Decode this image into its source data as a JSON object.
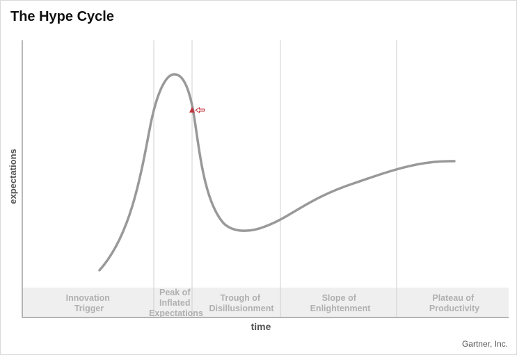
{
  "title": "The Hype Cycle",
  "credit": "Gartner, Inc.",
  "axes": {
    "y_label": "expectations",
    "x_label": "time"
  },
  "phases": [
    {
      "lines": [
        "Innovation",
        "Trigger"
      ]
    },
    {
      "lines": [
        "Peak of",
        "Inflated",
        "Expectations"
      ]
    },
    {
      "lines": [
        "Trough of",
        "Disillusionment"
      ]
    },
    {
      "lines": [
        "Slope of",
        "Enlightenment"
      ]
    },
    {
      "lines": [
        "Plateau of",
        "Productivity"
      ]
    }
  ],
  "colors": {
    "curve": "#999999",
    "marker": "#c0313d",
    "band": "#efefef",
    "divider": "#cfcfcf",
    "axis": "#888888"
  },
  "icons": {
    "marker": "red-triangle-icon",
    "pointer": "left-arrow-icon"
  }
}
